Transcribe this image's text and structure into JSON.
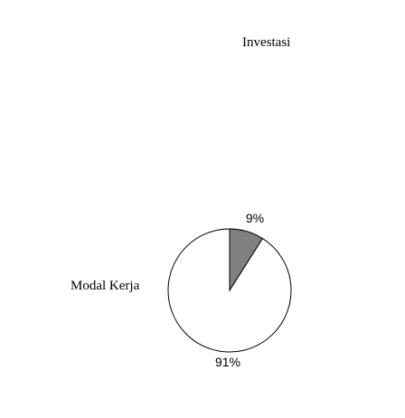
{
  "chart_data": {
    "type": "pie",
    "title": "",
    "categories": [
      "Investasi",
      "Modal Kerja"
    ],
    "values": [
      9,
      91
    ],
    "data_labels": [
      "9%",
      "91%"
    ],
    "colors": [
      "#808080",
      "#ffffff"
    ],
    "legend": "none",
    "start_angle_deg": 90,
    "direction": "clockwise"
  }
}
